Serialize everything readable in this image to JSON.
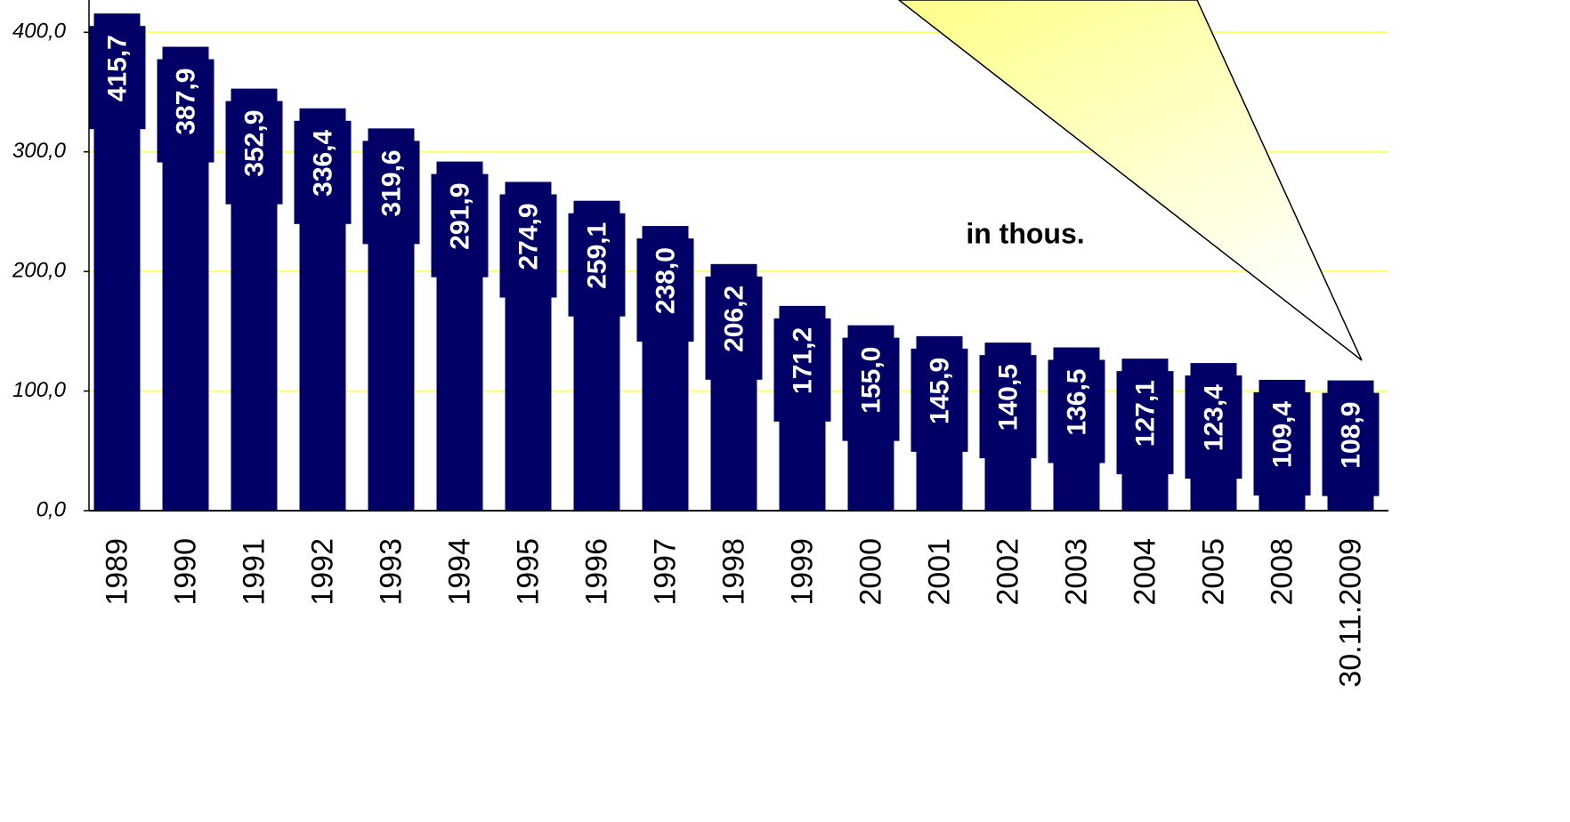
{
  "chart_data": {
    "type": "bar",
    "categories": [
      "1989",
      "1990",
      "1991",
      "1992",
      "1993",
      "1994",
      "1995",
      "1996",
      "1997",
      "1998",
      "1999",
      "2000",
      "2001",
      "2002",
      "2003",
      "2004",
      "2005",
      "2008",
      "30.11.2009"
    ],
    "values": [
      415.7,
      387.9,
      352.9,
      336.4,
      319.6,
      291.9,
      274.9,
      259.1,
      238.0,
      206.2,
      171.2,
      155.0,
      145.9,
      140.5,
      136.5,
      127.1,
      123.4,
      109.4,
      108.9
    ],
    "value_labels": [
      "415,7",
      "387,9",
      "352,9",
      "336,4",
      "319,6",
      "291,9",
      "274,9",
      "259,1",
      "238,0",
      "206,2",
      "171,2",
      "155,0",
      "145,9",
      "140,5",
      "136,5",
      "127,1",
      "123,4",
      "109,4",
      "108,9"
    ],
    "color": "#000066",
    "ylim": [
      0,
      427
    ],
    "yticks": [
      {
        "value": 0,
        "label": "0,0"
      },
      {
        "value": 100,
        "label": "100,0"
      },
      {
        "value": 200,
        "label": "200,0"
      },
      {
        "value": 300,
        "label": "300,0"
      },
      {
        "value": 400,
        "label": "400,0"
      }
    ],
    "grid": true,
    "annotation": "in thous."
  }
}
